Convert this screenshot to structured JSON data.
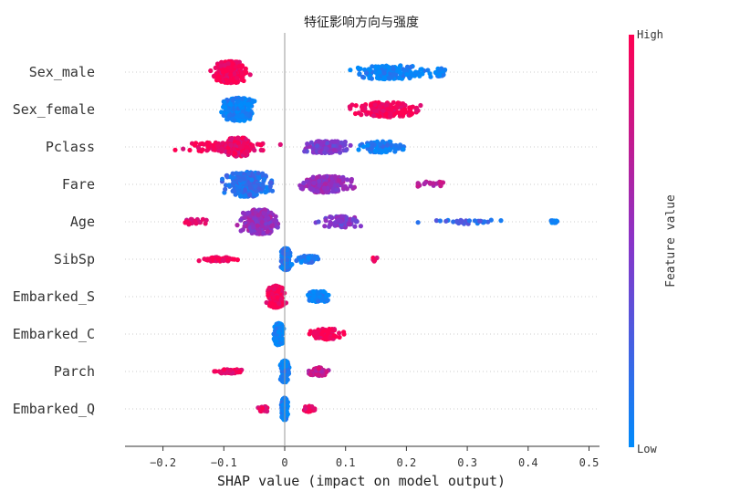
{
  "chart_data": {
    "type": "scatter",
    "subtype": "beeswarm",
    "title": "特征影响方向与强度",
    "xlabel": "SHAP value (impact on model output)",
    "xlim": [
      -0.26,
      0.52
    ],
    "xticks": [
      -0.2,
      -0.1,
      0.0,
      0.1,
      0.2,
      0.3,
      0.4,
      0.5
    ],
    "xtick_labels": [
      "−0.2",
      "−0.1",
      "0",
      "0.1",
      "0.2",
      "0.3",
      "0.4",
      "0.5"
    ],
    "grid": false,
    "colorbar": {
      "label": "Feature value",
      "high_label": "High",
      "low_label": "Low",
      "high_color": "#ff0052",
      "mid_color": "#8a33c8",
      "low_color": "#008bfb"
    },
    "features": [
      {
        "name": "Sex_male",
        "clusters": [
          {
            "center": -0.09,
            "spread": 0.045,
            "count": 260,
            "value": 0.97,
            "width": 0.8
          },
          {
            "center": 0.17,
            "spread": 0.1,
            "count": 170,
            "value": 0.03,
            "width": 0.5
          },
          {
            "center": 0.255,
            "spread": 0.012,
            "count": 30,
            "value": 0.03,
            "width": 0.35
          }
        ]
      },
      {
        "name": "Sex_female",
        "clusters": [
          {
            "center": -0.075,
            "spread": 0.04,
            "count": 250,
            "value": 0.03,
            "width": 0.85
          },
          {
            "center": 0.17,
            "spread": 0.09,
            "count": 170,
            "value": 0.97,
            "width": 0.55
          }
        ]
      },
      {
        "name": "Pclass",
        "clusters": [
          {
            "center": -0.1,
            "spread": 0.11,
            "count": 140,
            "value": 0.95,
            "width": 0.35
          },
          {
            "center": -0.075,
            "spread": 0.035,
            "count": 120,
            "value": 0.9,
            "width": 0.7
          },
          {
            "center": 0.07,
            "spread": 0.06,
            "count": 130,
            "value": 0.45,
            "width": 0.45
          },
          {
            "center": 0.16,
            "spread": 0.06,
            "count": 90,
            "value": 0.08,
            "width": 0.4
          }
        ]
      },
      {
        "name": "Fare",
        "clusters": [
          {
            "center": -0.06,
            "spread": 0.06,
            "count": 330,
            "value": 0.15,
            "width": 0.9
          },
          {
            "center": 0.07,
            "spread": 0.065,
            "count": 200,
            "value": 0.55,
            "width": 0.6
          },
          {
            "center": 0.24,
            "spread": 0.05,
            "count": 20,
            "value": 0.7,
            "width": 0.2
          }
        ]
      },
      {
        "name": "Age",
        "clusters": [
          {
            "center": -0.04,
            "spread": 0.05,
            "count": 320,
            "value": 0.55,
            "width": 0.9
          },
          {
            "center": 0.09,
            "spread": 0.06,
            "count": 80,
            "value": 0.45,
            "width": 0.4
          },
          {
            "center": -0.15,
            "spread": 0.04,
            "count": 25,
            "value": 0.85,
            "width": 0.2
          },
          {
            "center": 0.3,
            "spread": 0.1,
            "count": 28,
            "value": 0.2,
            "width": 0.15
          },
          {
            "center": 0.445,
            "spread": 0.02,
            "count": 10,
            "value": 0.05,
            "width": 0.1
          }
        ]
      },
      {
        "name": "SibSp",
        "clusters": [
          {
            "center": 0.002,
            "spread": 0.012,
            "count": 300,
            "value": 0.1,
            "width": 0.8
          },
          {
            "center": 0.04,
            "spread": 0.03,
            "count": 60,
            "value": 0.1,
            "width": 0.25
          },
          {
            "center": -0.11,
            "spread": 0.045,
            "count": 60,
            "value": 0.98,
            "width": 0.15
          },
          {
            "center": 0.15,
            "spread": 0.012,
            "count": 5,
            "value": 0.9,
            "width": 0.2
          }
        ]
      },
      {
        "name": "Embarked_S",
        "clusters": [
          {
            "center": -0.015,
            "spread": 0.02,
            "count": 280,
            "value": 0.97,
            "width": 0.8
          },
          {
            "center": 0.055,
            "spread": 0.03,
            "count": 90,
            "value": 0.03,
            "width": 0.4
          }
        ]
      },
      {
        "name": "Embarked_C",
        "clusters": [
          {
            "center": -0.01,
            "spread": 0.012,
            "count": 240,
            "value": 0.03,
            "width": 0.8
          },
          {
            "center": 0.07,
            "spread": 0.04,
            "count": 80,
            "value": 0.97,
            "width": 0.4
          }
        ]
      },
      {
        "name": "Parch",
        "clusters": [
          {
            "center": 0.0,
            "spread": 0.01,
            "count": 260,
            "value": 0.05,
            "width": 0.8
          },
          {
            "center": -0.09,
            "spread": 0.04,
            "count": 45,
            "value": 0.92,
            "width": 0.15
          },
          {
            "center": 0.055,
            "spread": 0.025,
            "count": 60,
            "value": 0.75,
            "width": 0.3
          }
        ]
      },
      {
        "name": "Embarked_Q",
        "clusters": [
          {
            "center": 0.0,
            "spread": 0.008,
            "count": 260,
            "value": 0.05,
            "width": 0.8
          },
          {
            "center": -0.035,
            "spread": 0.015,
            "count": 30,
            "value": 0.9,
            "width": 0.2
          },
          {
            "center": 0.04,
            "spread": 0.015,
            "count": 30,
            "value": 0.9,
            "width": 0.2
          }
        ]
      }
    ]
  }
}
